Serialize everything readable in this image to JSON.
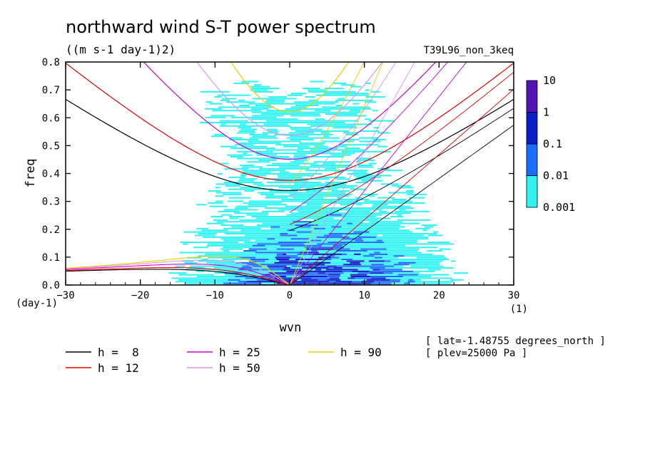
{
  "chart_data": {
    "type": "heatmap",
    "title": "northward wind S-T power spectrum",
    "units": "((m s-1 day-1)2)",
    "run_label": "T39L96_non_3keq",
    "xlabel": "wvn",
    "ylabel": "freq",
    "x_units": "(1)",
    "y_units": "(day-1)",
    "xlim": [
      -30,
      30
    ],
    "ylim": [
      0,
      0.8
    ],
    "x_ticks": [
      -30,
      -20,
      -10,
      0,
      10,
      20,
      30
    ],
    "y_ticks": [
      0.0,
      0.1,
      0.2,
      0.3,
      0.4,
      0.5,
      0.6,
      0.7,
      0.8
    ],
    "y_tick_labels": [
      "0.0",
      "0.1",
      "0.2",
      "0.3",
      "0.4",
      "0.5",
      "0.6",
      "0.7",
      "0.8"
    ],
    "colorbar": {
      "levels": [
        "0.001",
        "0.01",
        "0.1",
        "1",
        "10"
      ],
      "colors": [
        "#33f2f2",
        "#1a6eff",
        "#0a1ec8",
        "#5214b4"
      ]
    },
    "dispersion_curves": [
      {
        "label": "h =  8",
        "h": 8,
        "color": "#000000"
      },
      {
        "label": "h = 12",
        "h": 12,
        "color": "#e60000"
      },
      {
        "label": "h = 25",
        "h": 25,
        "color": "#d200d2"
      },
      {
        "label": "h = 50",
        "h": 50,
        "color": "#dc96e6"
      },
      {
        "label": "h = 90",
        "h": 90,
        "color": "#e6d200"
      }
    ],
    "annotations": [
      "[ lat=-1.48755 degrees_north ]",
      "[ plev=25000 Pa ]"
    ]
  }
}
